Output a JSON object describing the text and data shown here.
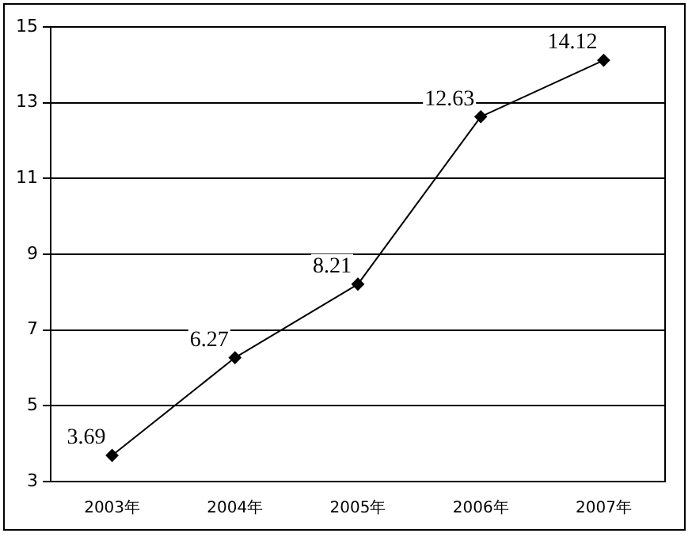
{
  "chart_data": {
    "type": "line",
    "categories": [
      "2003年",
      "2004年",
      "2005年",
      "2006年",
      "2007年"
    ],
    "series": [
      {
        "color": "#000000",
        "values": [
          3.69,
          6.27,
          8.21,
          12.63,
          14.12
        ]
      }
    ],
    "ylim": [
      3,
      15
    ],
    "yticks": [
      3,
      5,
      7,
      9,
      11,
      13,
      15
    ],
    "grid": "y",
    "legend": false,
    "marker": "diamond",
    "line_style": "solid",
    "data_labels": true
  }
}
